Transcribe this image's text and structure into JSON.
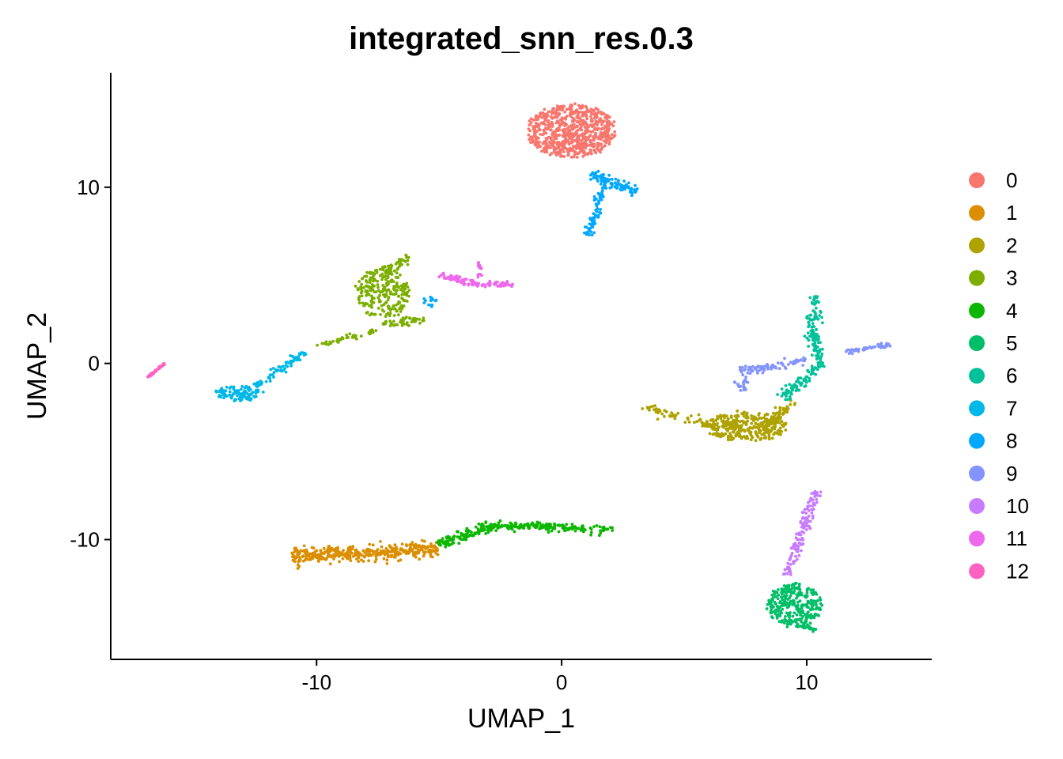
{
  "chart_data": {
    "type": "scatter",
    "title": "integrated_snn_res.0.3",
    "xlabel": "UMAP_1",
    "ylabel": "UMAP_2",
    "xlim": [
      -18.4,
      15.1
    ],
    "ylim": [
      -16.8,
      16.5
    ],
    "x_ticks": [
      -10,
      0,
      10
    ],
    "y_ticks": [
      -10,
      0,
      10
    ],
    "x_tick_labels": [
      "-10",
      "0",
      "10"
    ],
    "y_tick_labels": [
      "-10",
      "0",
      "10"
    ],
    "grid": false,
    "legend_position": "right",
    "series": [
      {
        "name": "0",
        "color": "#F8766D",
        "shapes": [
          {
            "kind": "ellipse",
            "cx": 0.4,
            "cy": 13.2,
            "rx": 1.8,
            "ry": 1.5,
            "n": 700
          }
        ]
      },
      {
        "name": "1",
        "color": "#DB8E00",
        "shapes": [
          {
            "kind": "seg",
            "x1": -11.0,
            "y1": -10.9,
            "x2": -5.0,
            "y2": -10.6,
            "w": 0.45,
            "n": 380
          }
        ]
      },
      {
        "name": "2",
        "color": "#AEA200",
        "shapes": [
          {
            "kind": "ellipse",
            "cx": 7.5,
            "cy": -3.6,
            "rx": 1.7,
            "ry": 0.8,
            "n": 300
          },
          {
            "kind": "seg",
            "x1": 3.3,
            "y1": -2.5,
            "x2": 6.5,
            "y2": -3.6,
            "w": 0.25,
            "n": 60
          },
          {
            "kind": "seg",
            "x1": 8.0,
            "y1": -3.8,
            "x2": 9.5,
            "y2": -2.2,
            "w": 0.3,
            "n": 60
          }
        ]
      },
      {
        "name": "3",
        "color": "#7CAE00",
        "shapes": [
          {
            "kind": "ellipse",
            "cx": -7.3,
            "cy": 4.0,
            "rx": 1.1,
            "ry": 1.4,
            "n": 250
          },
          {
            "kind": "seg",
            "x1": -7.2,
            "y1": 5.3,
            "x2": -6.2,
            "y2": 6.0,
            "w": 0.25,
            "n": 40
          },
          {
            "kind": "seg",
            "x1": -7.3,
            "y1": 2.2,
            "x2": -5.6,
            "y2": 2.5,
            "w": 0.2,
            "n": 50
          },
          {
            "kind": "seg",
            "x1": -10.0,
            "y1": 1.0,
            "x2": -7.5,
            "y2": 1.9,
            "w": 0.15,
            "n": 40
          }
        ]
      },
      {
        "name": "4",
        "color": "#0CB702",
        "shapes": [
          {
            "kind": "seg",
            "x1": -5.0,
            "y1": -10.3,
            "x2": -2.8,
            "y2": -9.2,
            "w": 0.3,
            "n": 120
          },
          {
            "kind": "seg",
            "x1": -2.8,
            "y1": -9.2,
            "x2": 2.1,
            "y2": -9.4,
            "w": 0.25,
            "n": 170
          }
        ]
      },
      {
        "name": "5",
        "color": "#00BE67",
        "shapes": [
          {
            "kind": "ellipse",
            "cx": 9.5,
            "cy": -13.7,
            "rx": 1.1,
            "ry": 1.2,
            "n": 280
          },
          {
            "kind": "seg",
            "x1": 9.6,
            "y1": -14.8,
            "x2": 10.4,
            "y2": -15.1,
            "w": 0.2,
            "n": 30
          }
        ]
      },
      {
        "name": "6",
        "color": "#00C19A",
        "shapes": [
          {
            "kind": "seg",
            "x1": 10.4,
            "y1": 3.8,
            "x2": 10.2,
            "y2": 1.5,
            "w": 0.25,
            "n": 70
          },
          {
            "kind": "seg",
            "x1": 10.2,
            "y1": 1.5,
            "x2": 10.6,
            "y2": 0.0,
            "w": 0.25,
            "n": 50
          },
          {
            "kind": "seg",
            "x1": 10.6,
            "y1": 0.0,
            "x2": 9.0,
            "y2": -2.0,
            "w": 0.3,
            "n": 80
          }
        ]
      },
      {
        "name": "7",
        "color": "#00B8E7",
        "shapes": [
          {
            "kind": "ellipse",
            "cx": -13.2,
            "cy": -1.7,
            "rx": 0.9,
            "ry": 0.4,
            "n": 110
          },
          {
            "kind": "seg",
            "x1": -12.5,
            "y1": -1.3,
            "x2": -10.5,
            "y2": 0.6,
            "w": 0.2,
            "n": 70
          }
        ]
      },
      {
        "name": "8",
        "color": "#00A9FF",
        "shapes": [
          {
            "kind": "seg",
            "x1": 1.2,
            "y1": 10.8,
            "x2": 3.0,
            "y2": 9.7,
            "w": 0.25,
            "n": 90
          },
          {
            "kind": "seg",
            "x1": 1.8,
            "y1": 10.5,
            "x2": 1.1,
            "y2": 7.3,
            "w": 0.22,
            "n": 90
          },
          {
            "kind": "ellipse",
            "cx": -5.4,
            "cy": 3.5,
            "rx": 0.3,
            "ry": 0.3,
            "n": 16
          }
        ]
      },
      {
        "name": "9",
        "color": "#8494FF",
        "shapes": [
          {
            "kind": "seg",
            "x1": 7.3,
            "y1": -0.5,
            "x2": 10.0,
            "y2": 0.2,
            "w": 0.25,
            "n": 80
          },
          {
            "kind": "seg",
            "x1": 11.5,
            "y1": 0.6,
            "x2": 13.4,
            "y2": 1.1,
            "w": 0.12,
            "n": 50
          },
          {
            "kind": "ellipse",
            "cx": 7.4,
            "cy": -1.2,
            "rx": 0.3,
            "ry": 0.4,
            "n": 20
          }
        ]
      },
      {
        "name": "10",
        "color": "#C77CFF",
        "shapes": [
          {
            "kind": "seg",
            "x1": 10.4,
            "y1": -7.2,
            "x2": 9.2,
            "y2": -12.0,
            "w": 0.25,
            "n": 130
          }
        ]
      },
      {
        "name": "11",
        "color": "#ED68ED",
        "shapes": [
          {
            "kind": "seg",
            "x1": -5.0,
            "y1": 5.0,
            "x2": -3.5,
            "y2": 4.5,
            "w": 0.2,
            "n": 55
          },
          {
            "kind": "seg",
            "x1": -3.5,
            "y1": 4.5,
            "x2": -2.0,
            "y2": 4.5,
            "w": 0.15,
            "n": 45
          },
          {
            "kind": "seg",
            "x1": -3.4,
            "y1": 5.9,
            "x2": -3.3,
            "y2": 4.6,
            "w": 0.1,
            "n": 15
          }
        ]
      },
      {
        "name": "12",
        "color": "#FF61C3",
        "shapes": [
          {
            "kind": "seg",
            "x1": -16.9,
            "y1": -0.8,
            "x2": -16.2,
            "y2": 0.0,
            "w": 0.05,
            "n": 35
          }
        ]
      }
    ]
  }
}
